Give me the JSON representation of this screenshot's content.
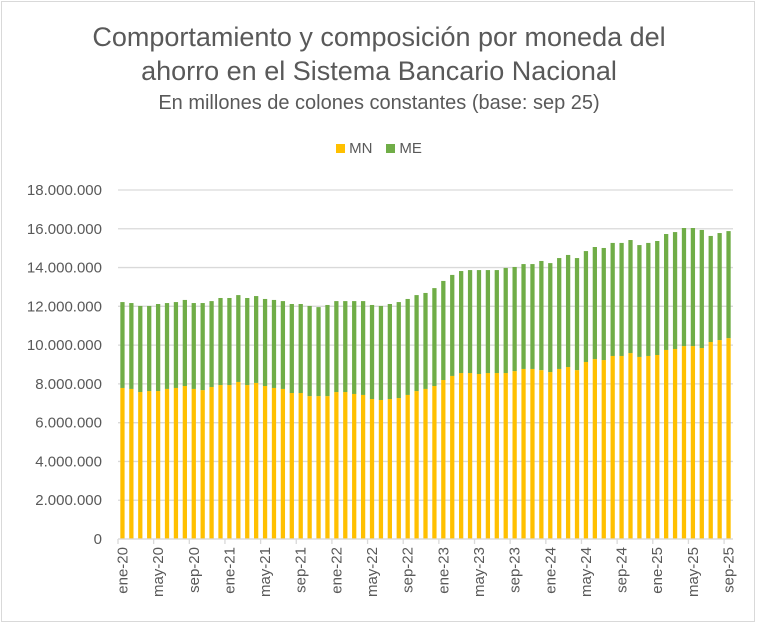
{
  "chart_data": {
    "type": "bar",
    "stacked": true,
    "title": "Comportamiento y composición por moneda del ahorro en el Sistema Bancario Nacional",
    "title_lines": [
      "Comportamiento y composición por moneda del",
      "ahorro en el Sistema Bancario Nacional"
    ],
    "subtitle": "En millones de colones constantes (base: sep 25)",
    "xlabel": "",
    "ylabel": "",
    "ylim": [
      0,
      18000000
    ],
    "yticks": [
      0,
      2000000,
      4000000,
      6000000,
      8000000,
      10000000,
      12000000,
      14000000,
      16000000,
      18000000
    ],
    "ytick_labels": [
      "0",
      "2.000.000",
      "4.000.000",
      "6.000.000",
      "8.000.000",
      "10.000.000",
      "12.000.000",
      "14.000.000",
      "16.000.000",
      "18.000.000"
    ],
    "grid": true,
    "legend_position": "top",
    "categories": [
      "ene-20",
      "feb-20",
      "mar-20",
      "abr-20",
      "may-20",
      "jun-20",
      "jul-20",
      "ago-20",
      "sep-20",
      "oct-20",
      "nov-20",
      "dic-20",
      "ene-21",
      "feb-21",
      "mar-21",
      "abr-21",
      "may-21",
      "jun-21",
      "jul-21",
      "ago-21",
      "sep-21",
      "oct-21",
      "nov-21",
      "dic-21",
      "ene-22",
      "feb-22",
      "mar-22",
      "abr-22",
      "may-22",
      "jun-22",
      "jul-22",
      "ago-22",
      "sep-22",
      "oct-22",
      "nov-22",
      "dic-22",
      "ene-23",
      "feb-23",
      "mar-23",
      "abr-23",
      "may-23",
      "jun-23",
      "jul-23",
      "ago-23",
      "sep-23",
      "oct-23",
      "nov-23",
      "dic-23",
      "ene-24",
      "feb-24",
      "mar-24",
      "abr-24",
      "may-24",
      "jun-24",
      "jul-24",
      "ago-24",
      "sep-24",
      "oct-24",
      "nov-24",
      "dic-24",
      "ene-25",
      "feb-25",
      "mar-25",
      "abr-25",
      "may-25",
      "jun-25",
      "jul-25",
      "ago-25",
      "sep-25"
    ],
    "xtick_labels_shown": [
      "ene-20",
      "may-20",
      "sep-20",
      "ene-21",
      "may-21",
      "sep-21",
      "ene-22",
      "may-22",
      "sep-22",
      "ene-23",
      "may-23",
      "sep-23",
      "ene-24",
      "may-24",
      "sep-24",
      "ene-25",
      "may-25",
      "sep-25"
    ],
    "xtick_every": 4,
    "series": [
      {
        "name": "MN",
        "color": "#FFC000",
        "values": [
          7790000,
          7740000,
          7580000,
          7630000,
          7630000,
          7740000,
          7790000,
          7890000,
          7740000,
          7680000,
          7840000,
          7940000,
          7940000,
          8100000,
          7940000,
          8050000,
          7890000,
          7790000,
          7740000,
          7530000,
          7530000,
          7370000,
          7370000,
          7370000,
          7580000,
          7580000,
          7480000,
          7430000,
          7220000,
          7170000,
          7220000,
          7270000,
          7430000,
          7630000,
          7740000,
          7890000,
          8200000,
          8410000,
          8560000,
          8560000,
          8510000,
          8560000,
          8560000,
          8560000,
          8660000,
          8770000,
          8770000,
          8710000,
          8610000,
          8770000,
          8870000,
          8710000,
          9130000,
          9280000,
          9230000,
          9440000,
          9440000,
          9590000,
          9390000,
          9440000,
          9490000,
          9750000,
          9800000,
          9950000,
          9950000,
          9850000,
          10160000,
          10260000,
          10360000
        ]
      },
      {
        "name": "ME",
        "color": "#70AD47",
        "values": [
          4430000,
          4430000,
          4440000,
          4390000,
          4490000,
          4430000,
          4430000,
          4440000,
          4430000,
          4490000,
          4430000,
          4490000,
          4490000,
          4480000,
          4490000,
          4480000,
          4490000,
          4540000,
          4530000,
          4590000,
          4590000,
          4650000,
          4590000,
          4700000,
          4690000,
          4690000,
          4790000,
          4840000,
          4850000,
          4850000,
          4900000,
          4950000,
          4950000,
          4950000,
          4950000,
          5050000,
          5110000,
          5210000,
          5260000,
          5310000,
          5360000,
          5310000,
          5310000,
          5420000,
          5370000,
          5410000,
          5410000,
          5630000,
          5620000,
          5720000,
          5780000,
          5780000,
          5720000,
          5780000,
          5780000,
          5830000,
          5830000,
          5830000,
          5770000,
          5830000,
          5880000,
          5980000,
          6030000,
          6090000,
          6090000,
          6090000,
          5470000,
          5520000,
          5520000
        ]
      }
    ]
  }
}
